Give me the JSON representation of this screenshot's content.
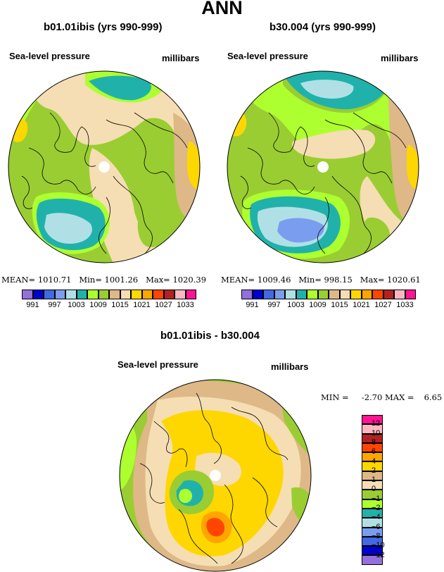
{
  "title": "ANN",
  "panels": [
    {
      "id": "left",
      "case": "b01.01ibis (yrs 990-999)",
      "field": "Sea-level pressure",
      "units": "millibars",
      "stats": {
        "mean_label": "MEAN=",
        "mean": "1010.71",
        "min_label": "Min=",
        "min": "1001.26",
        "max_label": "Max=",
        "max": "1020.39"
      }
    },
    {
      "id": "right",
      "case": "b30.004 (yrs 990-999)",
      "field": "Sea-level pressure",
      "units": "millibars",
      "stats": {
        "mean_label": "MEAN=",
        "mean": "1009.46",
        "min_label": "Min=",
        "min": "998.15",
        "max_label": "Max=",
        "max": "1020.61"
      }
    }
  ],
  "diff_panel": {
    "title": "b01.01ibis - b30.004",
    "field": "Sea-level pressure",
    "units": "millibars",
    "stats": {
      "min_label": "MIN =",
      "min": "-2.70",
      "max_label": "MAX =",
      "max": "6.65"
    }
  },
  "colors": {
    "abs_scale": [
      "#9370db",
      "#0000cd",
      "#4169e1",
      "#7b9df0",
      "#b0e0e6",
      "#20b2aa",
      "#adff2f",
      "#9acd32",
      "#deb887",
      "#f5deb3",
      "#ffd700",
      "#ffa500",
      "#ff4500",
      "#b22222",
      "#ffb6c1",
      "#ff1493"
    ],
    "diff_scale": [
      "#9370db",
      "#0000cd",
      "#4169e1",
      "#7b9df0",
      "#b0e0e6",
      "#20b2aa",
      "#adff2f",
      "#9acd32",
      "#f5deb3",
      "#deb887",
      "#ffd700",
      "#ffa500",
      "#ff4500",
      "#b22222",
      "#ffb6c1",
      "#ff1493"
    ],
    "land_lines": "#000000"
  },
  "chart_data": [
    {
      "type": "heatmap",
      "projection": "polar-stereographic",
      "title": "b01.01ibis (yrs 990-999)",
      "variable": "Sea-level pressure",
      "units": "millibars",
      "mean": 1010.71,
      "min": 1001.26,
      "max": 1020.39,
      "contour_levels": [
        991,
        994,
        997,
        1000,
        1003,
        1006,
        1009,
        1012,
        1015,
        1018,
        1021,
        1024,
        1027,
        1030,
        1033
      ],
      "colorbar_labels": [
        "991",
        "997",
        "1003",
        "1009",
        "1015",
        "1021",
        "1027",
        "1033"
      ]
    },
    {
      "type": "heatmap",
      "projection": "polar-stereographic",
      "title": "b30.004 (yrs 990-999)",
      "variable": "Sea-level pressure",
      "units": "millibars",
      "mean": 1009.46,
      "min": 998.15,
      "max": 1020.61,
      "contour_levels": [
        991,
        994,
        997,
        1000,
        1003,
        1006,
        1009,
        1012,
        1015,
        1018,
        1021,
        1024,
        1027,
        1030,
        1033
      ],
      "colorbar_labels": [
        "991",
        "997",
        "1003",
        "1009",
        "1015",
        "1021",
        "1027",
        "1033"
      ]
    },
    {
      "type": "heatmap",
      "projection": "polar-stereographic",
      "title": "b01.01ibis - b30.004",
      "variable": "Sea-level pressure",
      "units": "millibars",
      "min": -2.7,
      "max": 6.65,
      "contour_levels": [
        -12,
        -10,
        -8,
        -6,
        -4,
        -2,
        -1,
        0,
        1,
        2,
        4,
        6,
        8,
        10,
        12
      ],
      "colorbar_labels": [
        "12",
        "10",
        "8",
        "6",
        "4",
        "2",
        "1",
        "0",
        "−1",
        "−2",
        "−4",
        "−6",
        "−8",
        "−10",
        "−12"
      ]
    }
  ]
}
